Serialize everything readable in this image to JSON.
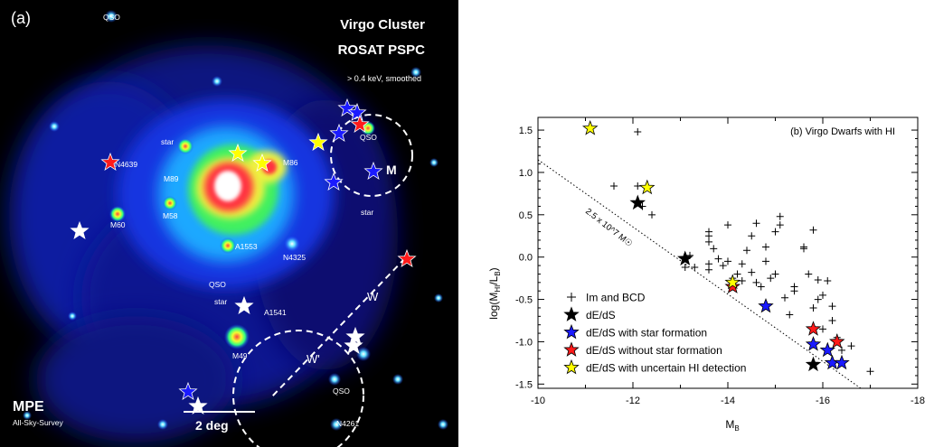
{
  "left_panel": {
    "panel_tag": "(a)",
    "title_line1": "Virgo Cluster",
    "title_line2": "ROSAT PSPC",
    "title_line3": "> 0.4 keV, smoothed",
    "logo": "MPE",
    "survey": "All-Sky-Survey",
    "scale_bar": "2 deg",
    "labels": [
      "QSO",
      "star",
      "M89",
      "M86",
      "N4639",
      "M60",
      "M58",
      "A1553",
      "N4325",
      "QSO",
      "star",
      "A1541",
      "M49",
      "QSO",
      "N4261",
      "QSO",
      "star",
      "M",
      "W",
      "W'"
    ]
  },
  "right_panel": {
    "annotation": "(b) Virgo Dwarfs with HI",
    "line_label": "2.5 x 10^7 M☉",
    "colors": {
      "im_bcd": "#000000",
      "de_ds": "#000000",
      "de_ds_sf": "#1a1aff",
      "de_ds_nosf": "#ff1a1a",
      "de_ds_unc": "#ffff00"
    }
  },
  "chart_data": {
    "type": "scatter",
    "title": "(b) Virgo Dwarfs with HI",
    "xlabel": "M_B",
    "ylabel": "log(M_HI/L_B)",
    "xlim": [
      -10,
      -18
    ],
    "ylim": [
      -1.55,
      1.65
    ],
    "xticks": [
      "-10",
      "-12",
      "-14",
      "-16",
      "-18"
    ],
    "yticks": [
      "-1.5",
      "-1.0",
      "-0.5",
      "0.0",
      "0.5",
      "1.0",
      "1.5"
    ],
    "legend_position": "bottom-left",
    "reference_line": {
      "label": "2.5 x 10^7 M☉",
      "points": [
        [
          -10,
          1.15
        ],
        [
          -16.8,
          -1.55
        ]
      ]
    },
    "series": [
      {
        "name": "Im and BCD",
        "marker": "plus",
        "points": [
          [
            -12.1,
            1.48
          ],
          [
            -11.6,
            0.84
          ],
          [
            -12.1,
            0.84
          ],
          [
            -12.2,
            0.6
          ],
          [
            -12.4,
            0.5
          ],
          [
            -13.2,
            0.02
          ],
          [
            -13.1,
            -0.12
          ],
          [
            -13.6,
            0.3
          ],
          [
            -13.6,
            0.25
          ],
          [
            -13.6,
            0.18
          ],
          [
            -13.7,
            0.1
          ],
          [
            -13.6,
            -0.08
          ],
          [
            -13.6,
            -0.15
          ],
          [
            -13.8,
            -0.02
          ],
          [
            -13.9,
            -0.1
          ],
          [
            -14.0,
            0.38
          ],
          [
            -14.0,
            -0.05
          ],
          [
            -14.1,
            -0.25
          ],
          [
            -14.2,
            -0.2
          ],
          [
            -14.3,
            -0.28
          ],
          [
            -14.4,
            0.08
          ],
          [
            -14.5,
            0.25
          ],
          [
            -14.5,
            -0.18
          ],
          [
            -14.6,
            0.4
          ],
          [
            -14.6,
            -0.3
          ],
          [
            -14.7,
            -0.35
          ],
          [
            -14.8,
            0.12
          ],
          [
            -14.8,
            -0.05
          ],
          [
            -14.9,
            -0.25
          ],
          [
            -15.0,
            0.3
          ],
          [
            -15.0,
            -0.2
          ],
          [
            -15.1,
            0.48
          ],
          [
            -15.1,
            0.38
          ],
          [
            -15.2,
            -0.48
          ],
          [
            -15.3,
            -0.68
          ],
          [
            -15.4,
            -0.4
          ],
          [
            -15.4,
            -0.35
          ],
          [
            -15.6,
            0.12
          ],
          [
            -15.6,
            0.1
          ],
          [
            -15.8,
            0.32
          ],
          [
            -15.7,
            -0.2
          ],
          [
            -15.8,
            -0.6
          ],
          [
            -15.9,
            -0.27
          ],
          [
            -15.9,
            -0.5
          ],
          [
            -16.0,
            -0.85
          ],
          [
            -16.0,
            -0.45
          ],
          [
            -16.1,
            -0.28
          ],
          [
            -16.2,
            -0.58
          ],
          [
            -16.2,
            -0.75
          ],
          [
            -16.3,
            -0.95
          ],
          [
            -16.4,
            -1.1
          ],
          [
            -16.6,
            -1.05
          ],
          [
            -17.0,
            -1.35
          ],
          [
            -14.3,
            -0.08
          ],
          [
            -13.3,
            -0.12
          ]
        ]
      },
      {
        "name": "dE/dS",
        "marker": "star",
        "points": [
          [
            -12.1,
            0.64
          ],
          [
            -13.1,
            -0.02
          ],
          [
            -15.8,
            -1.27
          ]
        ]
      },
      {
        "name": "dE/dS with star formation",
        "marker": "star",
        "points": [
          [
            -14.8,
            -0.58
          ],
          [
            -15.8,
            -1.03
          ],
          [
            -16.1,
            -1.1
          ],
          [
            -16.2,
            -1.25
          ],
          [
            -16.4,
            -1.25
          ]
        ]
      },
      {
        "name": "dE/dS without star formation",
        "marker": "star",
        "points": [
          [
            -14.1,
            -0.35
          ],
          [
            -15.8,
            -0.85
          ],
          [
            -16.3,
            -1.0
          ]
        ]
      },
      {
        "name": "dE/dS with uncertain HI detection",
        "marker": "star",
        "points": [
          [
            -11.1,
            1.52
          ],
          [
            -12.3,
            0.82
          ],
          [
            -14.1,
            -0.3
          ]
        ]
      }
    ]
  }
}
